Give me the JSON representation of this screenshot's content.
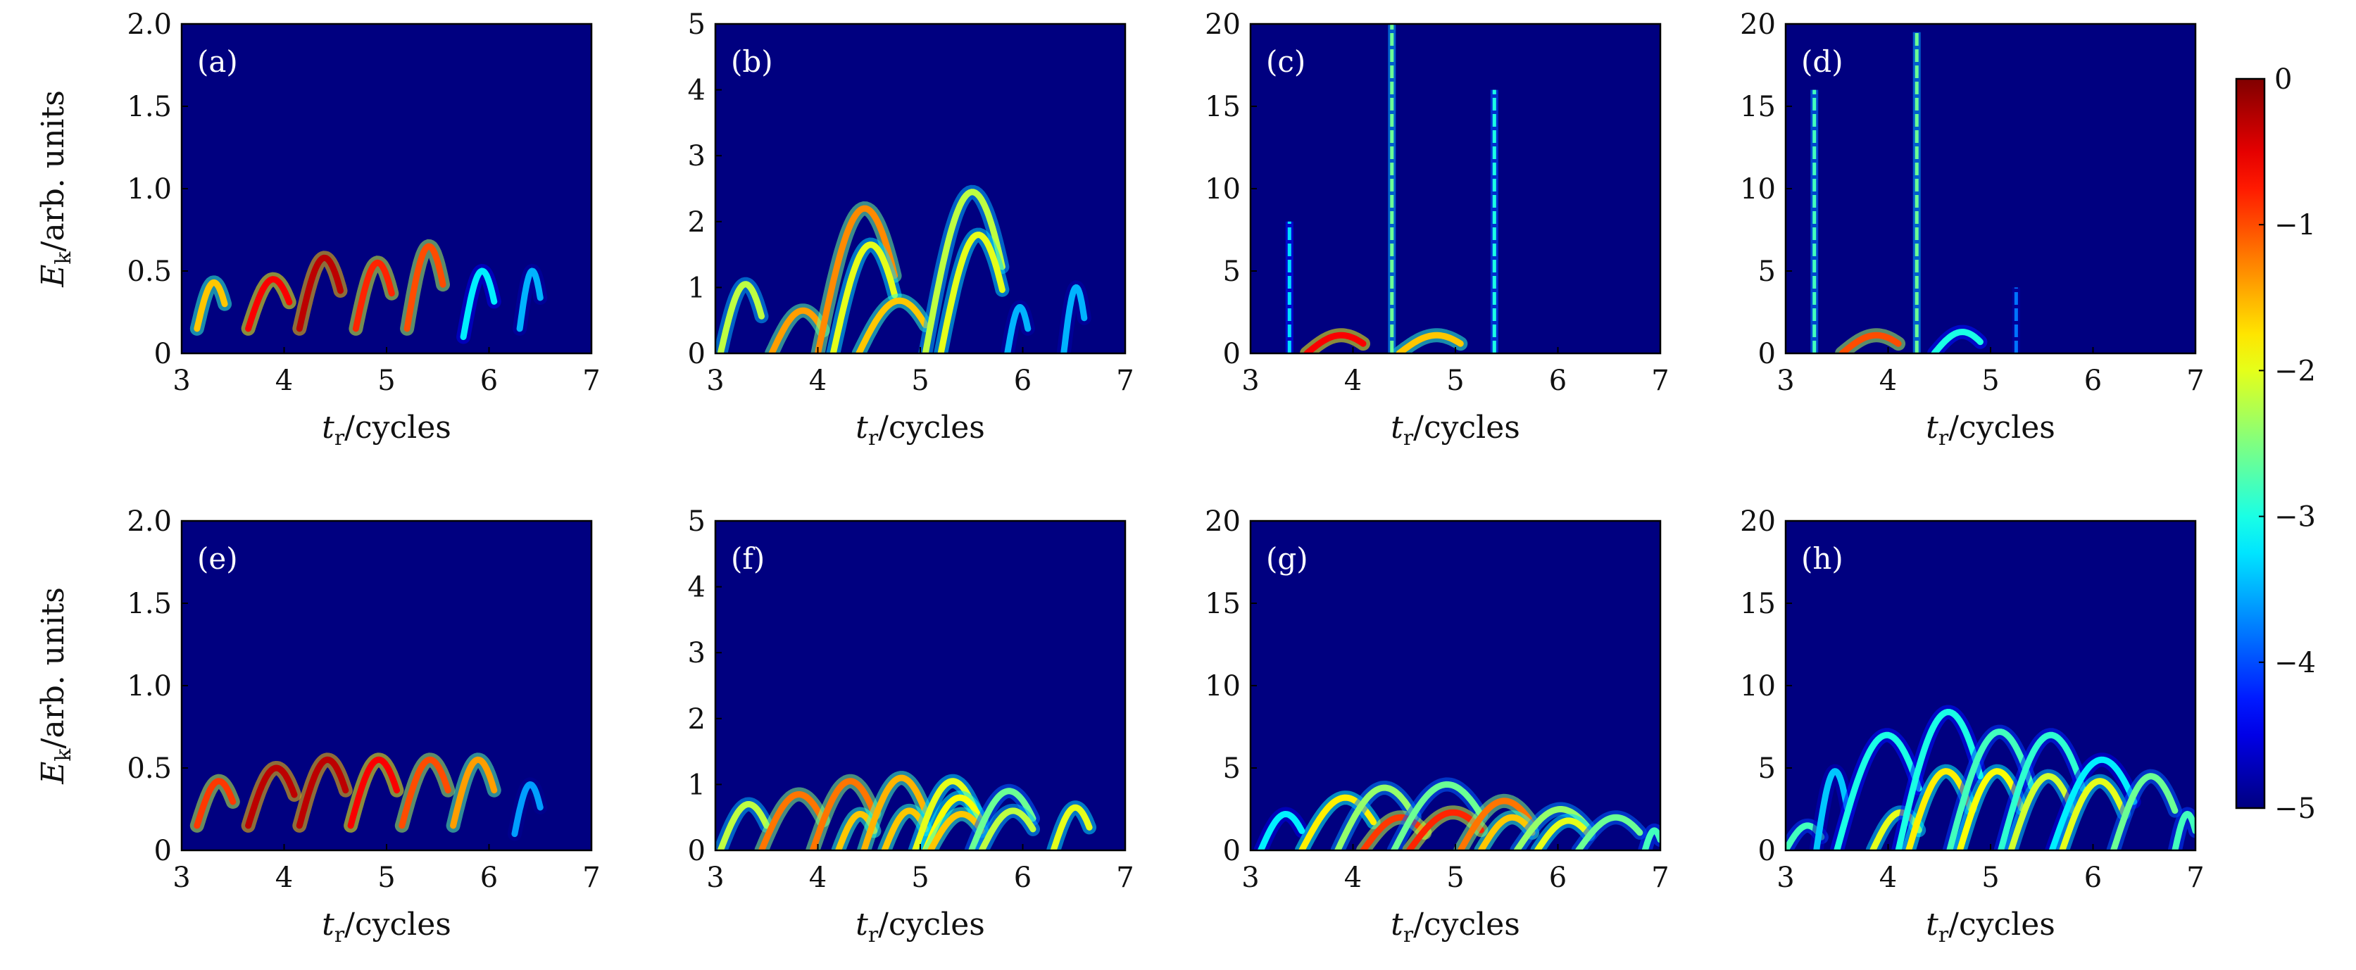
{
  "chart_data": {
    "type": "heatmap",
    "colormap": "jet",
    "colorbar": {
      "min": -5,
      "max": 0,
      "ticks": [
        "0",
        "−1",
        "−2",
        "−3",
        "−4",
        "−5"
      ]
    },
    "xlabel": {
      "italic": "t",
      "sub": "r",
      "rest": "/cycles"
    },
    "ylabel": {
      "italic": "E",
      "sub": "k",
      "rest": "/arb. units"
    },
    "xlim": [
      3,
      7
    ],
    "xticks": [
      "3",
      "4",
      "5",
      "6",
      "7"
    ],
    "panels": [
      {
        "tag": "(a)",
        "ylim": [
          0,
          2
        ],
        "yticks": [
          "0",
          "0.5",
          "1.0",
          "1.5",
          "2.0"
        ],
        "yvals": [
          0,
          0.5,
          1.0,
          1.5,
          2.0
        ],
        "traces": [
          {
            "x0": 3.15,
            "x1": 3.42,
            "peak": 0.43,
            "base": 0.15,
            "level": -1.6
          },
          {
            "x0": 3.65,
            "x1": 4.05,
            "peak": 0.45,
            "base": 0.15,
            "level": -0.6
          },
          {
            "x0": 4.15,
            "x1": 4.55,
            "peak": 0.58,
            "base": 0.15,
            "level": -0.3
          },
          {
            "x0": 4.7,
            "x1": 5.05,
            "peak": 0.55,
            "base": 0.15,
            "level": -0.8
          },
          {
            "x0": 5.2,
            "x1": 5.55,
            "peak": 0.65,
            "base": 0.15,
            "level": -1.0
          },
          {
            "x0": 5.75,
            "x1": 6.05,
            "peak": 0.5,
            "base": 0.1,
            "level": -3.2
          },
          {
            "x0": 6.3,
            "x1": 6.5,
            "peak": 0.5,
            "base": 0.15,
            "level": -3.5
          }
        ]
      },
      {
        "tag": "(b)",
        "ylim": [
          0,
          5
        ],
        "yticks": [
          "0",
          "1",
          "2",
          "3",
          "4",
          "5"
        ],
        "yvals": [
          0,
          1,
          2,
          3,
          4,
          5
        ],
        "traces": [
          {
            "x0": 3.05,
            "x1": 3.45,
            "peak": 1.05,
            "base": 0.0,
            "level": -2.2
          },
          {
            "x0": 3.55,
            "x1": 4.05,
            "peak": 0.65,
            "base": 0.0,
            "level": -1.4
          },
          {
            "x0": 4.0,
            "x1": 4.75,
            "peak": 2.2,
            "base": 0.0,
            "level": -1.3
          },
          {
            "x0": 4.15,
            "x1": 4.75,
            "peak": 1.65,
            "base": 0.0,
            "level": -2.0
          },
          {
            "x0": 4.4,
            "x1": 5.05,
            "peak": 0.8,
            "base": 0.0,
            "level": -1.6
          },
          {
            "x0": 5.05,
            "x1": 5.8,
            "peak": 2.45,
            "base": 0.0,
            "level": -2.2
          },
          {
            "x0": 5.2,
            "x1": 5.8,
            "peak": 1.8,
            "base": 0.0,
            "level": -2.0
          },
          {
            "x0": 5.85,
            "x1": 6.05,
            "peak": 0.7,
            "base": 0.0,
            "level": -3.5
          },
          {
            "x0": 6.4,
            "x1": 6.6,
            "peak": 1.0,
            "base": 0.0,
            "level": -3.5
          }
        ]
      },
      {
        "tag": "(c)",
        "ylim": [
          0,
          20
        ],
        "yticks": [
          "0",
          "5",
          "10",
          "15",
          "20"
        ],
        "yvals": [
          0,
          5,
          10,
          15,
          20
        ],
        "traces": [
          {
            "x0": 3.55,
            "x1": 4.1,
            "peak": 1.1,
            "base": 0.0,
            "level": -0.6
          },
          {
            "x0": 4.45,
            "x1": 5.05,
            "peak": 1.1,
            "base": 0.0,
            "level": -1.6
          }
        ],
        "spikes": [
          {
            "x": 3.38,
            "top": 8.0,
            "level": -3.3
          },
          {
            "x": 4.38,
            "top": 20.0,
            "level": -2.6
          },
          {
            "x": 5.38,
            "top": 16.0,
            "level": -3.0
          }
        ]
      },
      {
        "tag": "(d)",
        "ylim": [
          0,
          20
        ],
        "yticks": [
          "0",
          "5",
          "10",
          "15",
          "20"
        ],
        "yvals": [
          0,
          5,
          10,
          15,
          20
        ],
        "traces": [
          {
            "x0": 3.55,
            "x1": 4.1,
            "peak": 1.1,
            "base": 0.0,
            "level": -1.0
          },
          {
            "x0": 4.45,
            "x1": 4.9,
            "peak": 1.3,
            "base": 0.0,
            "level": -3.0
          }
        ],
        "spikes": [
          {
            "x": 3.28,
            "top": 16.0,
            "level": -2.8
          },
          {
            "x": 4.28,
            "top": 19.5,
            "level": -2.6
          },
          {
            "x": 5.25,
            "top": 4.0,
            "level": -3.8
          }
        ]
      },
      {
        "tag": "(e)",
        "ylim": [
          0,
          2
        ],
        "yticks": [
          "0",
          "0.5",
          "1.0",
          "1.5",
          "2.0"
        ],
        "yvals": [
          0,
          0.5,
          1.0,
          1.5,
          2.0
        ],
        "traces": [
          {
            "x0": 3.15,
            "x1": 3.5,
            "peak": 0.42,
            "base": 0.15,
            "level": -0.9
          },
          {
            "x0": 3.65,
            "x1": 4.1,
            "peak": 0.5,
            "base": 0.15,
            "level": -0.3
          },
          {
            "x0": 4.15,
            "x1": 4.6,
            "peak": 0.55,
            "base": 0.15,
            "level": -0.3
          },
          {
            "x0": 4.65,
            "x1": 5.1,
            "peak": 0.55,
            "base": 0.15,
            "level": -0.6
          },
          {
            "x0": 5.15,
            "x1": 5.6,
            "peak": 0.55,
            "base": 0.15,
            "level": -1.0
          },
          {
            "x0": 5.65,
            "x1": 6.05,
            "peak": 0.55,
            "base": 0.15,
            "level": -1.4
          },
          {
            "x0": 6.25,
            "x1": 6.5,
            "peak": 0.4,
            "base": 0.1,
            "level": -3.6
          }
        ]
      },
      {
        "tag": "(f)",
        "ylim": [
          0,
          5
        ],
        "yticks": [
          "0",
          "1",
          "2",
          "3",
          "4",
          "5"
        ],
        "yvals": [
          0,
          1,
          2,
          3,
          4,
          5
        ],
        "traces": [
          {
            "x0": 3.05,
            "x1": 3.5,
            "peak": 0.7,
            "base": 0.0,
            "level": -2.2
          },
          {
            "x0": 3.45,
            "x1": 4.05,
            "peak": 0.85,
            "base": 0.0,
            "level": -1.2
          },
          {
            "x0": 3.95,
            "x1": 4.55,
            "peak": 1.05,
            "base": 0.0,
            "level": -1.2
          },
          {
            "x0": 4.2,
            "x1": 4.55,
            "peak": 0.55,
            "base": 0.0,
            "level": -1.6
          },
          {
            "x0": 4.45,
            "x1": 5.05,
            "peak": 1.1,
            "base": 0.0,
            "level": -1.5
          },
          {
            "x0": 4.65,
            "x1": 5.05,
            "peak": 0.6,
            "base": 0.0,
            "level": -1.6
          },
          {
            "x0": 4.95,
            "x1": 5.55,
            "peak": 1.05,
            "base": 0.0,
            "level": -2.0
          },
          {
            "x0": 5.05,
            "x1": 5.6,
            "peak": 0.8,
            "base": 0.0,
            "level": -1.9
          },
          {
            "x0": 5.1,
            "x1": 5.6,
            "peak": 0.55,
            "base": 0.0,
            "level": -1.6
          },
          {
            "x0": 5.5,
            "x1": 6.1,
            "peak": 0.9,
            "base": 0.0,
            "level": -2.6
          },
          {
            "x0": 5.6,
            "x1": 6.1,
            "peak": 0.6,
            "base": 0.0,
            "level": -2.2
          },
          {
            "x0": 6.3,
            "x1": 6.65,
            "peak": 0.65,
            "base": 0.0,
            "level": -2.0
          }
        ]
      },
      {
        "tag": "(g)",
        "ylim": [
          0,
          20
        ],
        "yticks": [
          "0",
          "5",
          "10",
          "15",
          "20"
        ],
        "yvals": [
          0,
          5,
          10,
          15,
          20
        ],
        "traces": [
          {
            "x0": 3.1,
            "x1": 3.5,
            "peak": 2.2,
            "base": 0.0,
            "level": -3.2
          },
          {
            "x0": 3.5,
            "x1": 4.2,
            "peak": 3.2,
            "base": 0.0,
            "level": -1.8
          },
          {
            "x0": 3.85,
            "x1": 4.6,
            "peak": 3.8,
            "base": 0.0,
            "level": -2.4
          },
          {
            "x0": 4.1,
            "x1": 4.7,
            "peak": 2.0,
            "base": 0.0,
            "level": -0.9
          },
          {
            "x0": 4.4,
            "x1": 5.25,
            "peak": 4.0,
            "base": 0.0,
            "level": -2.6
          },
          {
            "x0": 4.55,
            "x1": 5.25,
            "peak": 2.3,
            "base": 0.0,
            "level": -0.8
          },
          {
            "x0": 5.05,
            "x1": 5.75,
            "peak": 3.0,
            "base": 0.0,
            "level": -1.2
          },
          {
            "x0": 5.25,
            "x1": 5.75,
            "peak": 2.0,
            "base": 0.0,
            "level": -1.6
          },
          {
            "x0": 5.6,
            "x1": 6.3,
            "peak": 2.5,
            "base": 0.0,
            "level": -2.4
          },
          {
            "x0": 5.8,
            "x1": 6.3,
            "peak": 1.8,
            "base": 0.0,
            "level": -2.0
          },
          {
            "x0": 6.2,
            "x1": 6.8,
            "peak": 2.0,
            "base": 0.0,
            "level": -2.6
          },
          {
            "x0": 6.85,
            "x1": 7.0,
            "peak": 1.2,
            "base": 0.0,
            "level": -2.8
          }
        ]
      },
      {
        "tag": "(h)",
        "ylim": [
          0,
          20
        ],
        "yticks": [
          "0",
          "5",
          "10",
          "15",
          "20"
        ],
        "yvals": [
          0,
          5,
          10,
          15,
          20
        ],
        "traces": [
          {
            "x0": 3.0,
            "x1": 3.35,
            "peak": 1.5,
            "base": 0.0,
            "level": -2.8
          },
          {
            "x0": 3.3,
            "x1": 3.6,
            "peak": 4.8,
            "base": 0.0,
            "level": -3.4
          },
          {
            "x0": 3.5,
            "x1": 4.3,
            "peak": 7.0,
            "base": 0.0,
            "level": -3.0
          },
          {
            "x0": 3.85,
            "x1": 4.3,
            "peak": 2.3,
            "base": 0.0,
            "level": -2.0
          },
          {
            "x0": 4.1,
            "x1": 4.9,
            "peak": 8.4,
            "base": 0.0,
            "level": -3.0
          },
          {
            "x0": 4.2,
            "x1": 4.8,
            "peak": 4.8,
            "base": 0.0,
            "level": -1.8
          },
          {
            "x0": 4.6,
            "x1": 5.4,
            "peak": 7.2,
            "base": 0.0,
            "level": -2.8
          },
          {
            "x0": 4.7,
            "x1": 5.3,
            "peak": 4.8,
            "base": 0.0,
            "level": -1.9
          },
          {
            "x0": 5.1,
            "x1": 5.9,
            "peak": 7.0,
            "base": 0.0,
            "level": -2.9
          },
          {
            "x0": 5.2,
            "x1": 5.8,
            "peak": 4.5,
            "base": 0.0,
            "level": -2.1
          },
          {
            "x0": 5.6,
            "x1": 6.4,
            "peak": 5.5,
            "base": 0.0,
            "level": -3.2
          },
          {
            "x0": 5.7,
            "x1": 6.3,
            "peak": 4.2,
            "base": 0.0,
            "level": -2.0
          },
          {
            "x0": 6.2,
            "x1": 6.8,
            "peak": 4.5,
            "base": 0.0,
            "level": -2.6
          },
          {
            "x0": 6.8,
            "x1": 7.0,
            "peak": 2.2,
            "base": 0.0,
            "level": -2.8
          }
        ]
      }
    ]
  }
}
